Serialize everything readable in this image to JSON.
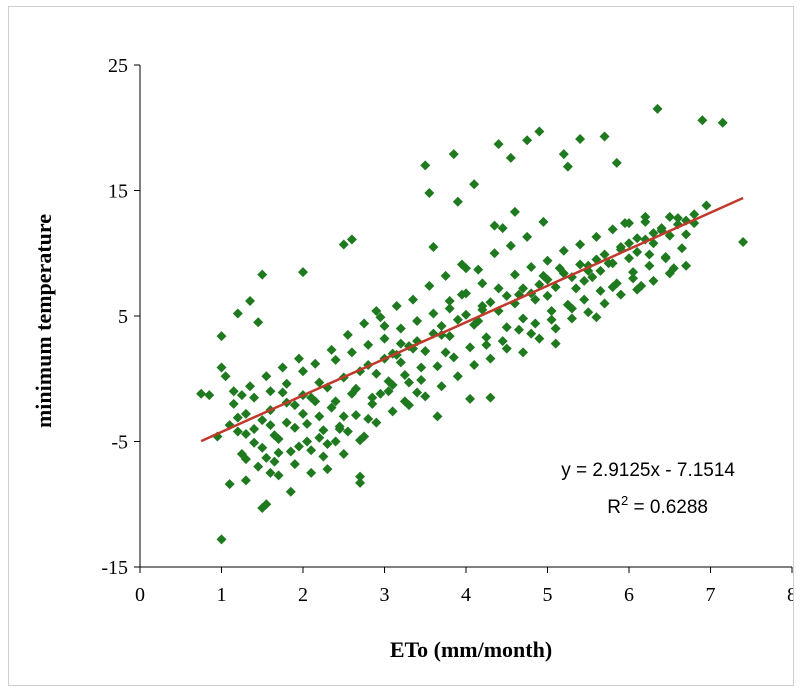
{
  "chart_data": {
    "type": "scatter",
    "xlabel": "ETo (mm/month)",
    "ylabel": "minimum temperature",
    "xlim": [
      0,
      8
    ],
    "ylim": [
      -15,
      25
    ],
    "xticks": [
      "0",
      "1",
      "2",
      "3",
      "4",
      "5",
      "6",
      "7",
      "8"
    ],
    "yticks": [
      "25",
      "15",
      "5",
      "-5",
      "-15"
    ],
    "grid": false,
    "marker": "diamond",
    "colors": {
      "points": "#1f7a1f",
      "trendline": "#c0392b"
    },
    "trendline": {
      "slope": 2.9125,
      "intercept": -7.1514,
      "x_range": [
        0.75,
        7.4
      ]
    },
    "annotations": {
      "equation": "y = 2.9125x - 7.1514",
      "r2_prefix": "R",
      "r2_exp": "2",
      "r2_suffix": " = 0.6288"
    },
    "points": [
      [
        0.75,
        -1.2
      ],
      [
        0.85,
        -1.3
      ],
      [
        0.95,
        -4.6
      ],
      [
        1.0,
        3.4
      ],
      [
        1.0,
        0.9
      ],
      [
        1.0,
        -12.8
      ],
      [
        1.05,
        0.2
      ],
      [
        1.1,
        -8.4
      ],
      [
        1.15,
        -1.0
      ],
      [
        1.2,
        5.2
      ],
      [
        1.2,
        -3.1
      ],
      [
        1.25,
        -1.3
      ],
      [
        1.3,
        -6.4
      ],
      [
        1.3,
        -8.1
      ],
      [
        1.35,
        6.2
      ],
      [
        1.4,
        -4.0
      ],
      [
        1.4,
        -1.5
      ],
      [
        1.45,
        4.5
      ],
      [
        1.5,
        8.3
      ],
      [
        1.5,
        -10.3
      ],
      [
        1.55,
        -10.0
      ],
      [
        1.55,
        -6.3
      ],
      [
        1.6,
        -7.5
      ],
      [
        1.6,
        -3.7
      ],
      [
        1.65,
        -4.5
      ],
      [
        1.7,
        -7.7
      ],
      [
        1.75,
        -1.1
      ],
      [
        1.8,
        -3.5
      ],
      [
        1.85,
        -9.0
      ],
      [
        1.9,
        -2.1
      ],
      [
        1.95,
        -5.4
      ],
      [
        2.0,
        8.5
      ],
      [
        2.0,
        -1.3
      ],
      [
        2.05,
        -3.6
      ],
      [
        2.1,
        -5.7
      ],
      [
        2.15,
        -1.8
      ],
      [
        2.2,
        -3.0
      ],
      [
        2.25,
        -4.1
      ],
      [
        2.3,
        -7.2
      ],
      [
        2.35,
        -2.3
      ],
      [
        2.4,
        -5.0
      ],
      [
        2.45,
        -4.0
      ],
      [
        2.5,
        -3.0
      ],
      [
        2.5,
        10.7
      ],
      [
        2.55,
        -4.2
      ],
      [
        2.6,
        11.1
      ],
      [
        2.65,
        -0.8
      ],
      [
        2.7,
        -8.3
      ],
      [
        2.7,
        -7.8
      ],
      [
        2.75,
        -4.6
      ],
      [
        2.8,
        -3.2
      ],
      [
        2.85,
        -1.5
      ],
      [
        2.9,
        5.4
      ],
      [
        2.95,
        -1.2
      ],
      [
        3.0,
        4.2
      ],
      [
        3.05,
        -0.2
      ],
      [
        3.1,
        -0.5
      ],
      [
        3.15,
        1.9
      ],
      [
        3.2,
        2.8
      ],
      [
        3.25,
        -1.8
      ],
      [
        3.3,
        -0.3
      ],
      [
        3.35,
        2.4
      ],
      [
        3.4,
        -1.1
      ],
      [
        3.45,
        0.9
      ],
      [
        3.5,
        17.0
      ],
      [
        3.55,
        14.8
      ],
      [
        3.6,
        10.5
      ],
      [
        3.65,
        -3.0
      ],
      [
        3.7,
        3.5
      ],
      [
        3.75,
        2.1
      ],
      [
        3.8,
        5.6
      ],
      [
        3.85,
        17.9
      ],
      [
        3.9,
        14.1
      ],
      [
        3.95,
        6.7
      ],
      [
        4.0,
        8.8
      ],
      [
        4.05,
        -1.6
      ],
      [
        4.1,
        15.5
      ],
      [
        4.15,
        4.6
      ],
      [
        4.2,
        5.5
      ],
      [
        4.25,
        2.7
      ],
      [
        4.3,
        -1.5
      ],
      [
        4.35,
        12.2
      ],
      [
        4.4,
        18.7
      ],
      [
        4.45,
        12.0
      ],
      [
        4.5,
        4.1
      ],
      [
        4.55,
        17.6
      ],
      [
        4.6,
        13.3
      ],
      [
        4.65,
        6.7
      ],
      [
        4.7,
        4.8
      ],
      [
        4.75,
        19.0
      ],
      [
        4.8,
        3.6
      ],
      [
        4.85,
        6.3
      ],
      [
        4.9,
        19.7
      ],
      [
        4.95,
        8.2
      ],
      [
        5.0,
        6.6
      ],
      [
        5.05,
        4.7
      ],
      [
        5.1,
        2.8
      ],
      [
        5.15,
        8.8
      ],
      [
        5.2,
        17.9
      ],
      [
        5.25,
        16.9
      ],
      [
        5.3,
        5.6
      ],
      [
        5.35,
        7.2
      ],
      [
        5.4,
        19.1
      ],
      [
        5.45,
        7.8
      ],
      [
        5.5,
        9.0
      ],
      [
        5.55,
        8.1
      ],
      [
        5.6,
        4.9
      ],
      [
        5.65,
        8.6
      ],
      [
        5.7,
        19.3
      ],
      [
        5.75,
        9.2
      ],
      [
        5.8,
        7.3
      ],
      [
        5.85,
        17.2
      ],
      [
        5.9,
        10.5
      ],
      [
        5.95,
        12.4
      ],
      [
        6.0,
        9.6
      ],
      [
        6.05,
        8.0
      ],
      [
        6.1,
        11.2
      ],
      [
        6.15,
        7.4
      ],
      [
        6.2,
        12.5
      ],
      [
        6.25,
        9.9
      ],
      [
        6.3,
        10.8
      ],
      [
        6.35,
        21.5
      ],
      [
        6.4,
        11.8
      ],
      [
        6.45,
        9.7
      ],
      [
        6.5,
        12.9
      ],
      [
        6.55,
        8.8
      ],
      [
        6.6,
        12.3
      ],
      [
        6.7,
        11.5
      ],
      [
        6.8,
        12.4
      ],
      [
        6.9,
        20.6
      ],
      [
        6.95,
        13.8
      ],
      [
        7.15,
        20.4
      ],
      [
        7.4,
        10.9
      ],
      [
        1.2,
        -4.2
      ],
      [
        1.3,
        -2.8
      ],
      [
        1.4,
        -5.1
      ],
      [
        1.5,
        -3.3
      ],
      [
        1.6,
        -2.5
      ],
      [
        1.7,
        -4.8
      ],
      [
        1.8,
        -1.9
      ],
      [
        1.9,
        -3.9
      ],
      [
        2.0,
        -2.8
      ],
      [
        2.1,
        -1.5
      ],
      [
        2.2,
        -4.7
      ],
      [
        2.3,
        -0.7
      ],
      [
        2.4,
        -1.8
      ],
      [
        2.5,
        0.1
      ],
      [
        2.6,
        -1.2
      ],
      [
        2.7,
        0.6
      ],
      [
        2.8,
        1.1
      ],
      [
        2.9,
        0.4
      ],
      [
        3.0,
        1.6
      ],
      [
        3.1,
        2.0
      ],
      [
        3.2,
        1.3
      ],
      [
        3.3,
        2.6
      ],
      [
        3.4,
        3.0
      ],
      [
        3.5,
        2.2
      ],
      [
        3.6,
        3.6
      ],
      [
        3.7,
        4.2
      ],
      [
        3.8,
        3.4
      ],
      [
        3.9,
        4.7
      ],
      [
        4.0,
        5.1
      ],
      [
        4.1,
        4.3
      ],
      [
        4.2,
        5.8
      ],
      [
        4.3,
        6.1
      ],
      [
        4.4,
        5.4
      ],
      [
        4.5,
        6.6
      ],
      [
        4.6,
        6.0
      ],
      [
        4.7,
        7.2
      ],
      [
        4.8,
        6.8
      ],
      [
        4.9,
        7.5
      ],
      [
        5.0,
        7.9
      ],
      [
        5.1,
        7.3
      ],
      [
        5.2,
        8.4
      ],
      [
        5.3,
        8.1
      ],
      [
        5.4,
        9.1
      ],
      [
        5.5,
        8.6
      ],
      [
        5.6,
        9.5
      ],
      [
        5.7,
        9.9
      ],
      [
        5.8,
        9.2
      ],
      [
        5.9,
        10.3
      ],
      [
        6.0,
        10.8
      ],
      [
        6.1,
        10.1
      ],
      [
        6.2,
        11.1
      ],
      [
        6.3,
        11.6
      ],
      [
        6.4,
        12.0
      ],
      [
        6.5,
        11.4
      ],
      [
        6.6,
        12.8
      ],
      [
        6.7,
        12.6
      ],
      [
        6.8,
        13.1
      ],
      [
        1.25,
        -6.0
      ],
      [
        1.45,
        -7.0
      ],
      [
        1.65,
        -6.6
      ],
      [
        1.85,
        -5.8
      ],
      [
        2.05,
        -5.0
      ],
      [
        2.25,
        -6.2
      ],
      [
        2.45,
        -3.8
      ],
      [
        2.65,
        -2.9
      ],
      [
        2.85,
        -2.0
      ],
      [
        3.05,
        -1.0
      ],
      [
        3.25,
        0.3
      ],
      [
        3.45,
        -0.1
      ],
      [
        3.65,
        1.0
      ],
      [
        3.85,
        1.7
      ],
      [
        4.05,
        2.5
      ],
      [
        4.25,
        3.3
      ],
      [
        4.45,
        3.0
      ],
      [
        4.65,
        3.9
      ],
      [
        4.85,
        4.4
      ],
      [
        5.05,
        5.4
      ],
      [
        5.25,
        5.9
      ],
      [
        5.45,
        6.3
      ],
      [
        5.65,
        7.0
      ],
      [
        5.85,
        7.6
      ],
      [
        6.05,
        8.5
      ],
      [
        6.25,
        9.0
      ],
      [
        6.45,
        9.6
      ],
      [
        6.65,
        10.4
      ],
      [
        1.15,
        -2.0
      ],
      [
        1.35,
        -0.6
      ],
      [
        1.55,
        0.2
      ],
      [
        1.75,
        0.9
      ],
      [
        1.95,
        1.6
      ],
      [
        2.15,
        1.2
      ],
      [
        2.35,
        2.3
      ],
      [
        2.55,
        3.5
      ],
      [
        2.75,
        4.4
      ],
      [
        2.95,
        4.9
      ],
      [
        3.15,
        5.8
      ],
      [
        3.35,
        6.3
      ],
      [
        3.55,
        7.4
      ],
      [
        3.75,
        8.2
      ],
      [
        3.95,
        9.1
      ],
      [
        4.15,
        8.7
      ],
      [
        4.35,
        10.0
      ],
      [
        4.55,
        10.6
      ],
      [
        4.75,
        11.3
      ],
      [
        4.95,
        12.5
      ],
      [
        1.6,
        -1.0
      ],
      [
        1.8,
        -0.4
      ],
      [
        2.0,
        0.6
      ],
      [
        2.2,
        -0.3
      ],
      [
        2.4,
        1.5
      ],
      [
        2.6,
        2.1
      ],
      [
        2.8,
        2.7
      ],
      [
        3.0,
        3.2
      ],
      [
        3.2,
        4.0
      ],
      [
        3.4,
        4.6
      ],
      [
        3.6,
        5.2
      ],
      [
        3.8,
        6.2
      ],
      [
        4.0,
        6.8
      ],
      [
        4.2,
        7.6
      ],
      [
        4.4,
        7.2
      ],
      [
        4.6,
        8.3
      ],
      [
        4.8,
        8.9
      ],
      [
        5.0,
        9.4
      ],
      [
        5.2,
        10.2
      ],
      [
        5.4,
        10.7
      ],
      [
        5.6,
        11.3
      ],
      [
        5.8,
        11.9
      ],
      [
        6.0,
        12.4
      ],
      [
        6.2,
        12.9
      ],
      [
        1.1,
        -3.7
      ],
      [
        1.3,
        -4.4
      ],
      [
        1.5,
        -5.5
      ],
      [
        1.7,
        -5.9
      ],
      [
        1.9,
        -6.8
      ],
      [
        2.1,
        -7.5
      ],
      [
        2.3,
        -5.2
      ],
      [
        2.5,
        -6.0
      ],
      [
        2.7,
        -4.9
      ],
      [
        2.9,
        -3.5
      ],
      [
        3.1,
        -2.6
      ],
      [
        3.3,
        -2.1
      ],
      [
        3.5,
        -1.4
      ],
      [
        3.7,
        -0.6
      ],
      [
        3.9,
        0.2
      ],
      [
        4.1,
        1.1
      ],
      [
        4.3,
        1.6
      ],
      [
        4.5,
        2.4
      ],
      [
        4.7,
        2.1
      ],
      [
        4.9,
        3.2
      ],
      [
        5.1,
        4.0
      ],
      [
        5.3,
        4.8
      ],
      [
        5.5,
        5.3
      ],
      [
        5.7,
        6.0
      ],
      [
        5.9,
        6.7
      ],
      [
        6.1,
        7.1
      ],
      [
        6.3,
        7.8
      ],
      [
        6.5,
        8.4
      ],
      [
        6.7,
        9.0
      ]
    ]
  }
}
